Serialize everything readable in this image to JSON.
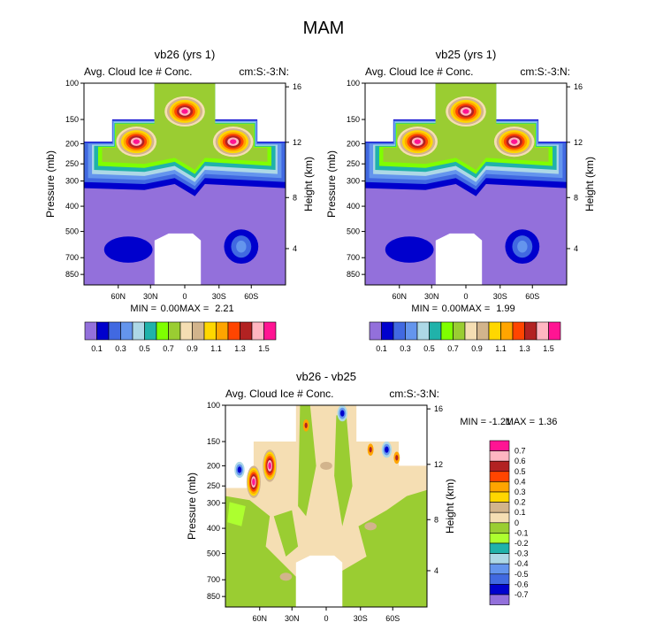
{
  "figure_title": "MAM",
  "chart_data": [
    {
      "type": "heatmap",
      "title": "vb26 (yrs 1)",
      "subtitle_left": "Avg. Cloud Ice # Conc.",
      "subtitle_right": "cm:S:-3:N:",
      "ylabel": "Pressure (mb)",
      "ylabel_right": "Height (km)",
      "x_ticks": [
        "60N",
        "30N",
        "0",
        "30S",
        "60S"
      ],
      "y_ticks": [
        "100",
        "150",
        "200",
        "250",
        "300",
        "400",
        "500",
        "700",
        "850"
      ],
      "y_ticks_right": [
        "16",
        "12",
        "8",
        "4"
      ],
      "min_label": "MIN =",
      "min_value": "0.00",
      "max_label": "MAX =",
      "max_value": "2.21",
      "colorbar_labels": [
        "0.1",
        "0.3",
        "0.5",
        "0.7",
        "0.9",
        "1.1",
        "1.3",
        "1.5"
      ]
    },
    {
      "type": "heatmap",
      "title": "vb25 (yrs 1)",
      "subtitle_left": "Avg. Cloud Ice # Conc.",
      "subtitle_right": "cm:S:-3:N:",
      "ylabel": "Pressure (mb)",
      "ylabel_right": "Height (km)",
      "x_ticks": [
        "60N",
        "30N",
        "0",
        "30S",
        "60S"
      ],
      "y_ticks": [
        "100",
        "150",
        "200",
        "250",
        "300",
        "400",
        "500",
        "700",
        "850"
      ],
      "y_ticks_right": [
        "16",
        "12",
        "8",
        "4"
      ],
      "min_label": "MIN =",
      "min_value": "0.00",
      "max_label": "MAX =",
      "max_value": "1.99",
      "colorbar_labels": [
        "0.1",
        "0.3",
        "0.5",
        "0.7",
        "0.9",
        "1.1",
        "1.3",
        "1.5"
      ]
    },
    {
      "type": "heatmap",
      "title": "vb26 - vb25",
      "subtitle_left": "Avg. Cloud Ice # Conc.",
      "subtitle_right": "cm:S:-3:N:",
      "ylabel": "Pressure (mb)",
      "ylabel_right": "Height (km)",
      "x_ticks": [
        "60N",
        "30N",
        "0",
        "30S",
        "60S"
      ],
      "y_ticks": [
        "100",
        "150",
        "200",
        "250",
        "300",
        "400",
        "500",
        "700",
        "850"
      ],
      "y_ticks_right": [
        "16",
        "12",
        "8",
        "4"
      ],
      "min_label": "MIN =",
      "min_value": "-1.21",
      "max_label": "MAX =",
      "max_value": "1.36",
      "colorbar_labels": [
        "0.7",
        "0.6",
        "0.5",
        "0.4",
        "0.3",
        "0.2",
        "0.1",
        "0",
        "-0.1",
        "-0.2",
        "-0.3",
        "-0.4",
        "-0.5",
        "-0.6",
        "-0.7"
      ]
    }
  ],
  "colors": {
    "abs_scale": [
      "#9370DB",
      "#0000CD",
      "#4169E1",
      "#6495ED",
      "#ADD8E6",
      "#20B2AA",
      "#7FFF00",
      "#9ACD32",
      "#F5DEB3",
      "#D2B48C",
      "#FFD700",
      "#FFA500",
      "#FF4500",
      "#B22222",
      "#FFB6C1",
      "#FF1493"
    ],
    "diff_scale": [
      "#FF1493",
      "#FFB6C1",
      "#B22222",
      "#FF4500",
      "#FFA500",
      "#FFD700",
      "#D2B48C",
      "#F5DEB3",
      "#9ACD32",
      "#ADFF2F",
      "#20B2AA",
      "#ADD8E6",
      "#6495ED",
      "#4169E1",
      "#0000CD",
      "#9370DB"
    ]
  }
}
